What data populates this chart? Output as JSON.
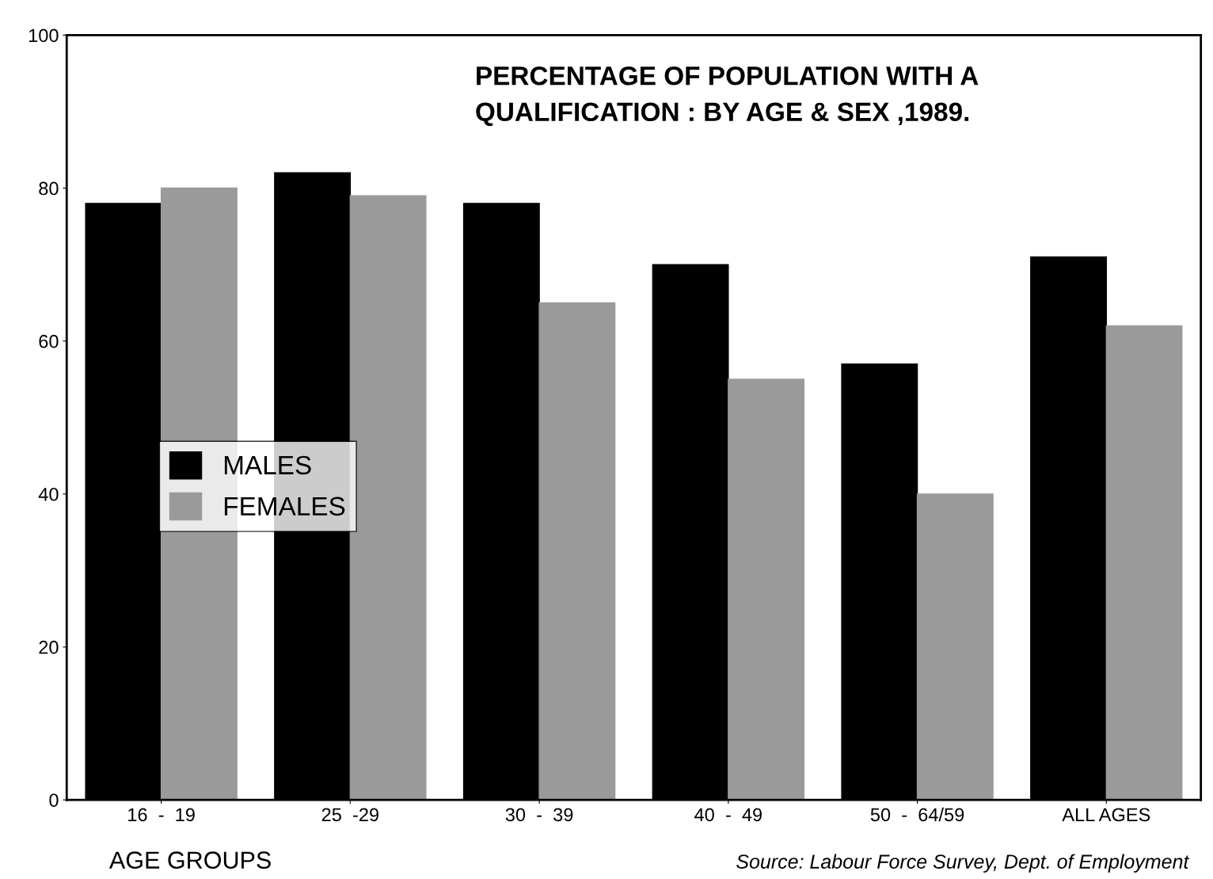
{
  "chart_data": {
    "type": "bar",
    "title": "PERCENTAGE OF POPULATION WITH A\nQUALIFICATION : BY AGE & SEX ,1989.",
    "xlabel": "AGE GROUPS",
    "categories": [
      "16  -  19",
      "25  -29",
      "30  -  39",
      "40  -  49",
      "50  -  64/59",
      "ALL AGES"
    ],
    "series": [
      {
        "name": "MALES",
        "color": "#000000",
        "values": [
          78,
          82,
          78,
          70,
          57,
          71
        ]
      },
      {
        "name": "FEMALES",
        "color": "#9a9a9a",
        "values": [
          80,
          79,
          65,
          55,
          40,
          62
        ]
      }
    ],
    "ylim": [
      0,
      100
    ],
    "yticks": [
      0,
      20,
      40,
      60,
      80,
      100
    ],
    "grid": false,
    "legend": "center left",
    "annotations": [
      "Source: Labour Force Survey, Dept. of Employment"
    ]
  }
}
